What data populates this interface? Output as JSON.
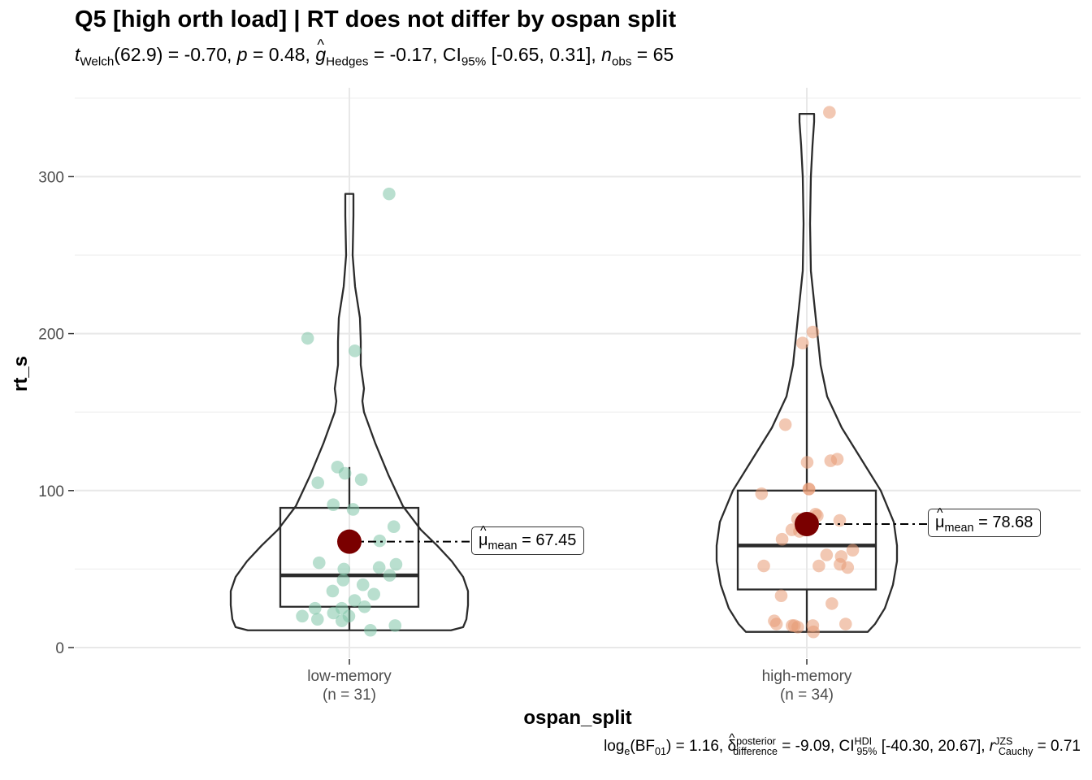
{
  "title": "Q5 [high orth load] | RT does not differ by ospan split",
  "subtitle": {
    "t_sub": "Welch",
    "df": "(62.9) = -0.70, ",
    "p_label": "p",
    "p_value": " = 0.48, ",
    "g_sub": "Hedges",
    "g_value": " = -0.17, CI",
    "ci_sub": "95%",
    "ci_value": " [-0.65, 0.31], ",
    "n_sub": "obs",
    "n_value": " = 65"
  },
  "caption": {
    "log_text": "log",
    "log_sub": "e",
    "bf_text": "(BF",
    "bf_sub": "01",
    "bf_value": ") = 1.16, ",
    "delta_sup": "posterior",
    "delta_sub": "difference",
    "delta_value": " = -9.09, CI",
    "ci_sup": "HDI",
    "ci_sub": "95%",
    "ci_value": " [-40.30, 20.67], ",
    "r_sup": "JZS",
    "r_sub": "Cauchy",
    "r_value": " = 0.71"
  },
  "colors": {
    "low_memory_points": "#7fc4a8",
    "high_memory_points": "#e79a74",
    "mean_point": "#7a0000",
    "grid": "#e8e8e8",
    "outline": "#2b2b2b"
  },
  "chart_data": {
    "type": "violin-box-scatter",
    "xlabel": "ospan_split",
    "ylabel": "rt_s",
    "ylim": [
      -7,
      352
    ],
    "y_ticks": [
      0,
      100,
      200,
      300
    ],
    "grid": true,
    "categories": [
      "low-memory",
      "high-memory"
    ],
    "category_counts": [
      "(n = 31)",
      "(n = 34)"
    ],
    "groups": [
      {
        "name": "low-memory",
        "n": 31,
        "mean": 67.45,
        "mean_label_value": "= 67.45",
        "box": {
          "q1": 26,
          "median": 46,
          "q3": 89,
          "whisker_low": 11,
          "whisker_high": 115
        },
        "violin": [
          [
            11,
            125
          ],
          [
            13,
            140
          ],
          [
            18,
            144
          ],
          [
            27,
            146
          ],
          [
            36,
            146
          ],
          [
            45,
            140
          ],
          [
            55,
            126
          ],
          [
            65,
            108
          ],
          [
            75,
            88
          ],
          [
            90,
            66
          ],
          [
            110,
            48
          ],
          [
            130,
            32
          ],
          [
            150,
            18
          ],
          [
            157,
            16
          ],
          [
            165,
            18
          ],
          [
            180,
            14
          ],
          [
            195,
            14
          ],
          [
            210,
            13
          ],
          [
            230,
            7
          ],
          [
            250,
            4
          ],
          [
            275,
            5
          ],
          [
            289,
            5
          ]
        ],
        "points": [
          289,
          197,
          189,
          115,
          111,
          107,
          105,
          91,
          88,
          77,
          68,
          54,
          53,
          51,
          50,
          46,
          43,
          40,
          36,
          34,
          30,
          26,
          25,
          25,
          22,
          20,
          20,
          18,
          17,
          14,
          11
        ]
      },
      {
        "name": "high-memory",
        "n": 34,
        "mean": 78.68,
        "mean_label_value": "= 78.68",
        "box": {
          "q1": 37,
          "median": 65,
          "q3": 100,
          "whisker_low": 10,
          "whisker_high": 193
        },
        "violin": [
          [
            10,
            75
          ],
          [
            15,
            84
          ],
          [
            25,
            96
          ],
          [
            40,
            106
          ],
          [
            55,
            111
          ],
          [
            65,
            111
          ],
          [
            80,
            107
          ],
          [
            100,
            91
          ],
          [
            120,
            67
          ],
          [
            140,
            43
          ],
          [
            160,
            25
          ],
          [
            180,
            17
          ],
          [
            200,
            13
          ],
          [
            220,
            9
          ],
          [
            240,
            5
          ],
          [
            270,
            4
          ],
          [
            300,
            5
          ],
          [
            320,
            7
          ],
          [
            335,
            9
          ],
          [
            340,
            9
          ]
        ],
        "points": [
          341,
          201,
          194,
          142,
          120,
          119,
          118,
          101,
          101,
          98,
          85,
          84,
          82,
          81,
          75,
          74,
          69,
          62,
          59,
          58,
          53,
          52,
          52,
          51,
          33,
          28,
          17,
          15,
          15,
          14,
          14,
          14,
          13,
          10
        ]
      }
    ]
  }
}
